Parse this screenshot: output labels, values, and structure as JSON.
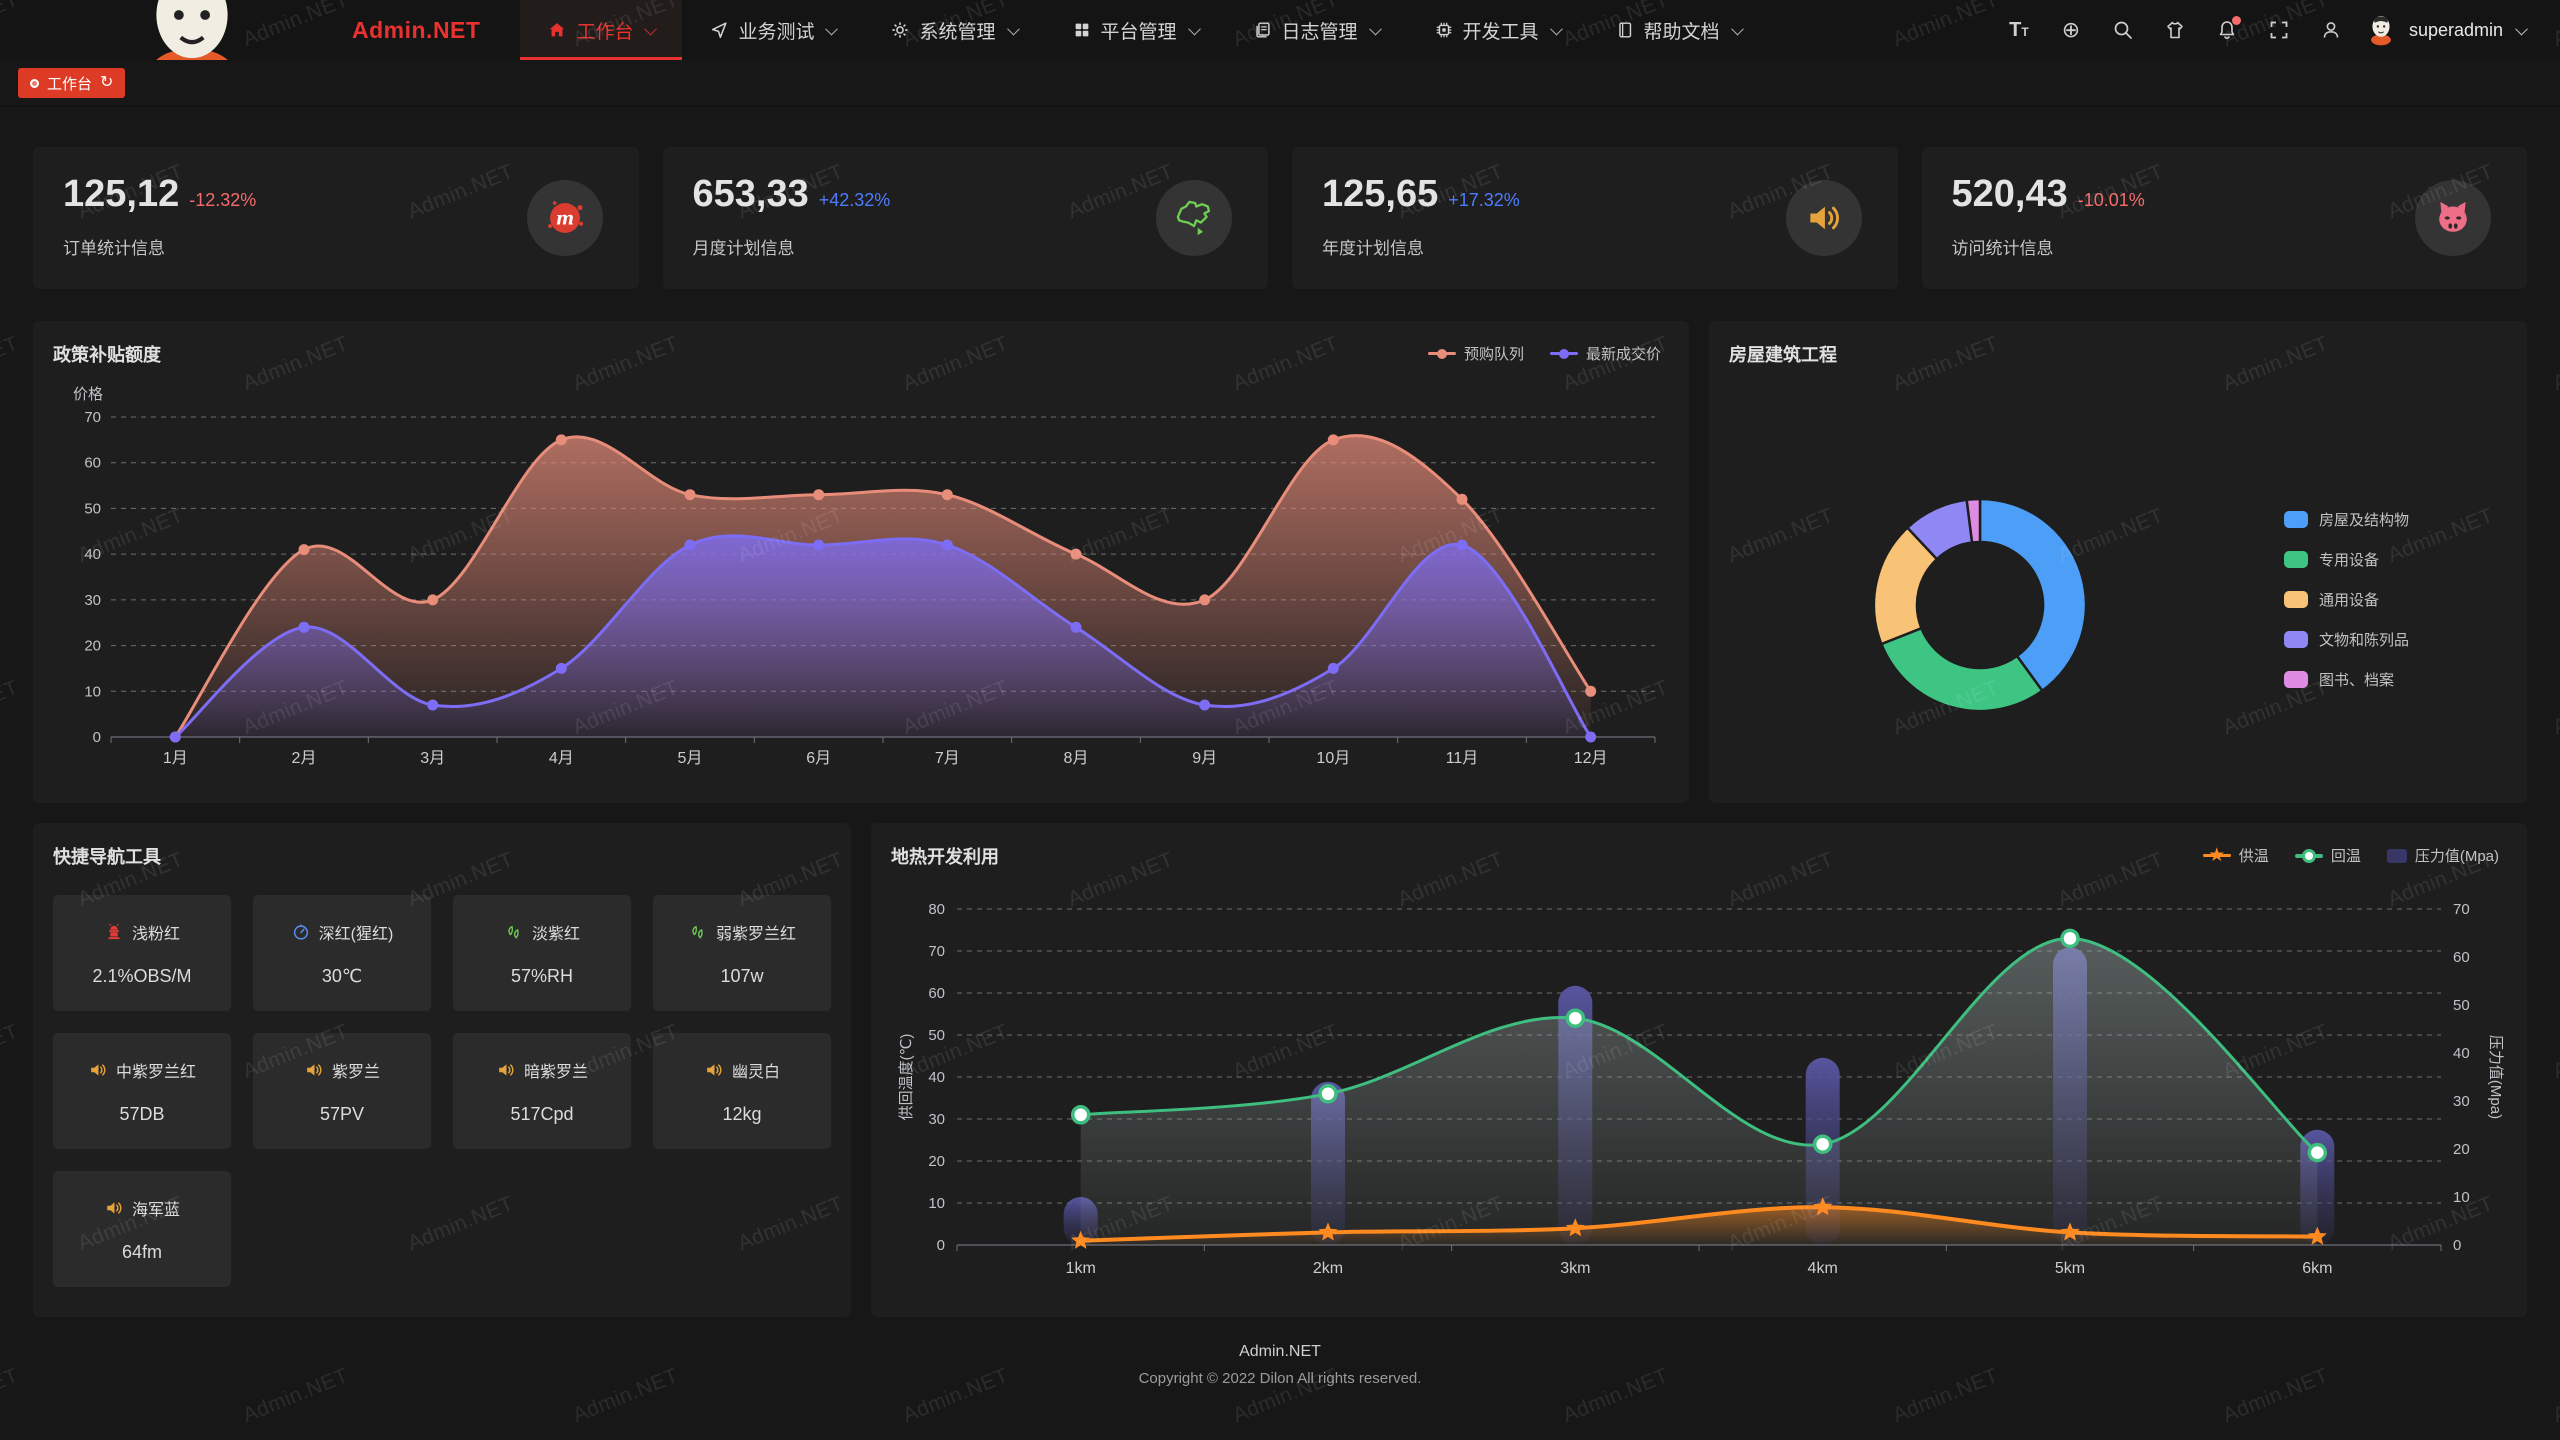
{
  "header": {
    "logo_text": "Admin.NET",
    "menu": [
      {
        "label": "工作台",
        "icon": "home-icon",
        "active": true
      },
      {
        "label": "业务测试",
        "icon": "nav-icon"
      },
      {
        "label": "系统管理",
        "icon": "gear-icon"
      },
      {
        "label": "平台管理",
        "icon": "grid-icon"
      },
      {
        "label": "日志管理",
        "icon": "log-icon"
      },
      {
        "label": "开发工具",
        "icon": "chip-icon"
      },
      {
        "label": "帮助文档",
        "icon": "doc-icon"
      }
    ],
    "right_icons": [
      "font-size-icon",
      "language-icon",
      "search-icon",
      "theme-icon",
      "bell-icon",
      "fullscreen-icon",
      "person-icon"
    ],
    "username": "superadmin"
  },
  "tabbar": {
    "active_tab": "工作台"
  },
  "stat_cards": [
    {
      "value": "125,12",
      "delta": "-12.32%",
      "delta_color": "#f56c6c",
      "label": "订单统计信息",
      "icon": "meetup-icon",
      "icon_color": "#db3c30"
    },
    {
      "value": "653,33",
      "delta": "+42.32%",
      "delta_color": "#4d7cfe",
      "label": "月度计划信息",
      "icon": "china-map-icon",
      "icon_color": "#6fce53"
    },
    {
      "value": "125,65",
      "delta": "+17.32%",
      "delta_color": "#4d7cfe",
      "label": "年度计划信息",
      "icon": "speaker-icon",
      "icon_color": "#e6a23c"
    },
    {
      "value": "520,43",
      "delta": "-10.01%",
      "delta_color": "#f56c6c",
      "label": "访问统计信息",
      "icon": "cat-icon",
      "icon_color": "#ee6e87"
    }
  ],
  "panels": {
    "subsidy": {
      "title": "政策补贴额度"
    },
    "building": {
      "title": "房屋建筑工程"
    },
    "quicknav": {
      "title": "快捷导航工具"
    },
    "geothermal": {
      "title": "地热开发利用"
    }
  },
  "quick_nav_buttons": [
    {
      "icon": "hydrant-icon",
      "icon_color": "#e23c39",
      "name": "浅粉红",
      "value": "2.1%OBS/M"
    },
    {
      "icon": "gauge-icon",
      "icon_color": "#5b8ff9",
      "name": "深红(猩红)",
      "value": "30℃"
    },
    {
      "icon": "humidity-icon",
      "icon_color": "#6fce53",
      "name": "淡紫红",
      "value": "57%RH"
    },
    {
      "icon": "leaf-icon",
      "icon_color": "#6fce53",
      "name": "弱紫罗兰红",
      "value": "107w"
    },
    {
      "icon": "speaker-icon",
      "icon_color": "#e6a23c",
      "name": "中紫罗兰红",
      "value": "57DB"
    },
    {
      "icon": "speaker-icon",
      "icon_color": "#e6a23c",
      "name": "紫罗兰",
      "value": "57PV"
    },
    {
      "icon": "speaker-icon",
      "icon_color": "#e6a23c",
      "name": "暗紫罗兰",
      "value": "517Cpd"
    },
    {
      "icon": "speaker-icon",
      "icon_color": "#e6a23c",
      "name": "幽灵白",
      "value": "12kg"
    },
    {
      "icon": "speaker-icon",
      "icon_color": "#e6a23c",
      "name": "海军蓝",
      "value": "64fm"
    }
  ],
  "footer": {
    "line1": "Admin.NET",
    "line2": "Copyright © 2022 Dilon All rights reserved."
  },
  "watermark": {
    "text": "Admin.NET"
  },
  "chart_data": [
    {
      "id": "subsidy",
      "type": "area",
      "title": "政策补贴额度",
      "ylabel": "价格",
      "ylim": [
        0,
        70
      ],
      "ytick": 10,
      "grid": "dashed",
      "legend_position": "top-right",
      "categories": [
        "1月",
        "2月",
        "3月",
        "4月",
        "5月",
        "6月",
        "7月",
        "8月",
        "9月",
        "10月",
        "11月",
        "12月"
      ],
      "series": [
        {
          "name": "预购队列",
          "color": "#e98d7b",
          "values": [
            0,
            41,
            30,
            65,
            53,
            53,
            53,
            40,
            30,
            65,
            52,
            10
          ]
        },
        {
          "name": "最新成交价",
          "color": "#7d6df5",
          "values": [
            0,
            24,
            7,
            15,
            42,
            42,
            42,
            24,
            7,
            15,
            42,
            0
          ]
        }
      ]
    },
    {
      "id": "building",
      "type": "pie",
      "title": "房屋建筑工程",
      "legend_position": "right",
      "slices": [
        {
          "name": "房屋及结构物",
          "color": "#4d9ef6",
          "value": 40
        },
        {
          "name": "专用设备",
          "color": "#3ec584",
          "value": 29
        },
        {
          "name": "通用设备",
          "color": "#f9c377",
          "value": 19
        },
        {
          "name": "文物和陈列品",
          "color": "#8f87f3",
          "value": 10
        },
        {
          "name": "图书、档案",
          "color": "#de8be4",
          "value": 2
        }
      ]
    },
    {
      "id": "geothermal",
      "type": "line-bar",
      "title": "地热开发利用",
      "categories": [
        "1km",
        "2km",
        "3km",
        "4km",
        "5km",
        "6km"
      ],
      "ylabel_left": "供回温度(℃)",
      "ylim_left": [
        0,
        80
      ],
      "ylabel_right": "压力值(Mpa)",
      "ylim_right": [
        0,
        70
      ],
      "grid": "dashed",
      "legend_position": "top-right",
      "series": [
        {
          "name": "供温",
          "type": "line",
          "marker": "star",
          "color": "#ff8a1f",
          "axis": "left",
          "values": [
            1,
            3,
            4,
            9,
            3,
            2
          ]
        },
        {
          "name": "回温",
          "type": "line",
          "marker": "circle",
          "color": "#3fbf7f",
          "axis": "left",
          "values": [
            31,
            36,
            54,
            24,
            73,
            22
          ]
        },
        {
          "name": "压力值(Mpa)",
          "type": "bar",
          "color": "#4f4d8f",
          "axis": "right",
          "values": [
            10,
            34,
            54,
            39,
            62,
            24
          ]
        }
      ]
    }
  ]
}
